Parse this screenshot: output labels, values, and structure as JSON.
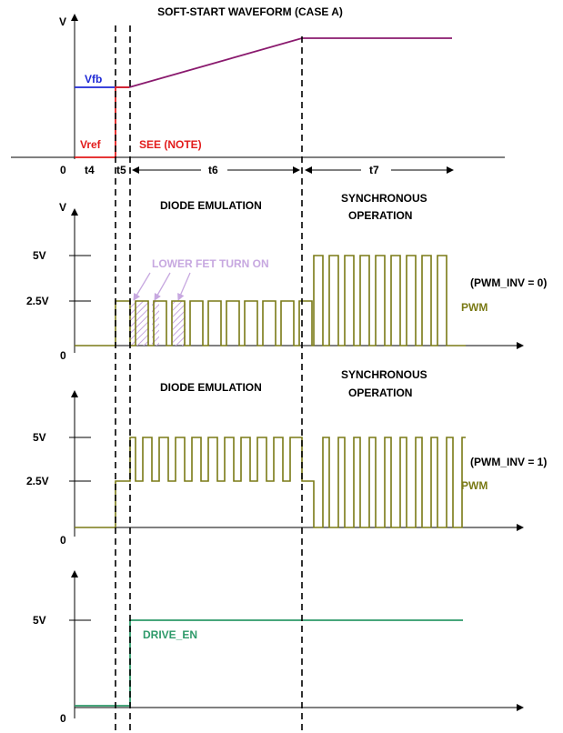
{
  "title": "SOFT-START WAVEFORM (CASE A)",
  "colors": {
    "vfb": "#1f2ad6",
    "vref": "#e21b1b",
    "ramp": "#8a1a6e",
    "pwm": "#7a7a16",
    "drive": "#2e9a6a",
    "annotation": "#c7a8e0"
  },
  "panel1": {
    "y_axis_label": "V",
    "origin_label": "0",
    "vfb_label": "Vfb",
    "vref_label": "Vref",
    "note_label": "SEE (NOTE)",
    "intervals": [
      "t4",
      "t5",
      "t6",
      "t7"
    ]
  },
  "panel2": {
    "y_axis_label": "V",
    "origin_label": "0",
    "ticks": [
      "5V",
      "2.5V"
    ],
    "mode_left": "DIODE EMULATION",
    "mode_right_line1": "SYNCHRONOUS",
    "mode_right_line2": "OPERATION",
    "annotation": "LOWER FET TURN ON",
    "setting": "(PWM_INV = 0)",
    "signal": "PWM"
  },
  "panel3": {
    "origin_label": "0",
    "ticks": [
      "5V",
      "2.5V"
    ],
    "mode_left": "DIODE EMULATION",
    "mode_right_line1": "SYNCHRONOUS",
    "mode_right_line2": "OPERATION",
    "setting": "(PWM_INV = 1)",
    "signal": "PWM"
  },
  "panel4": {
    "origin_label": "0",
    "ticks": [
      "5V"
    ],
    "signal": "DRIVE_EN"
  }
}
